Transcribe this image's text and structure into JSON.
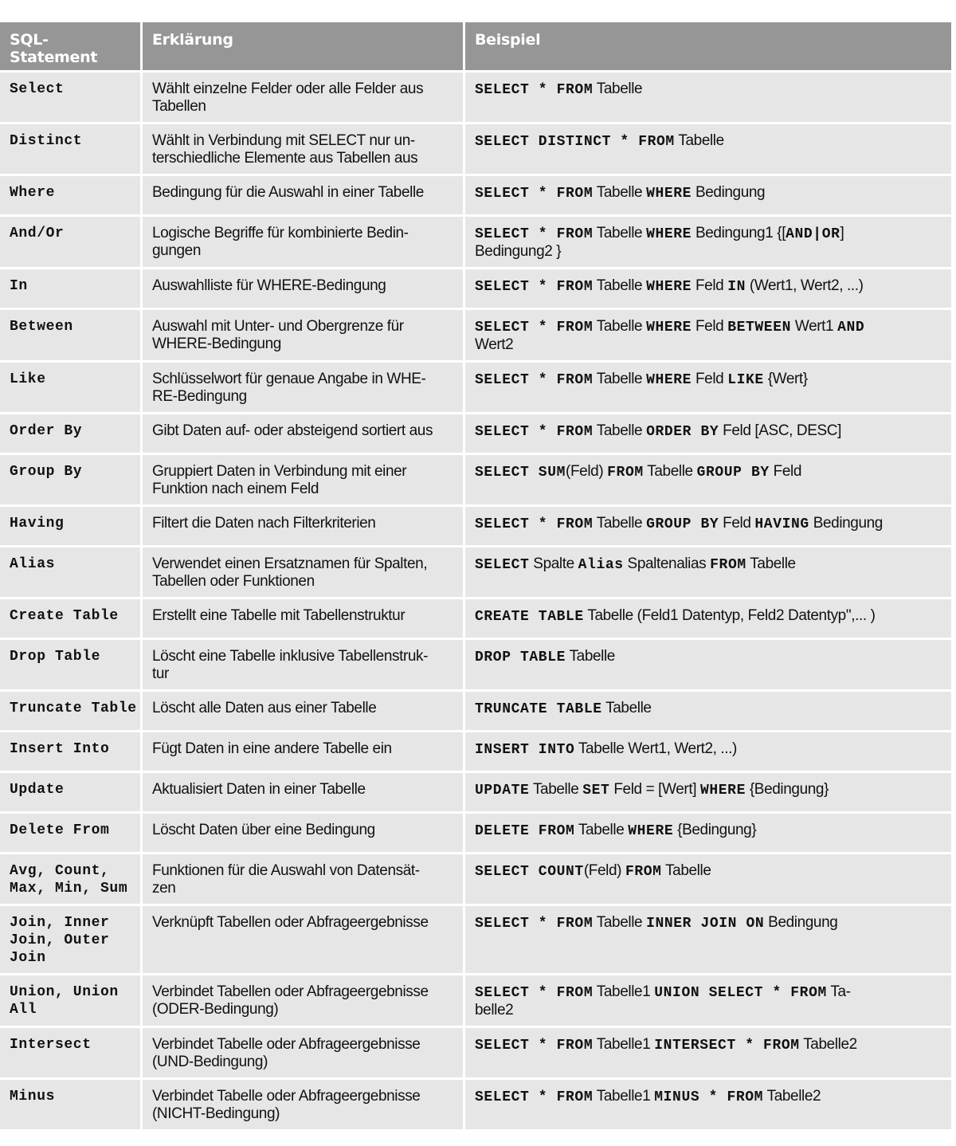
{
  "header": {
    "col1": "SQL-Statement",
    "col2": "Erklärung",
    "col3": "Beispiel"
  },
  "colors": {
    "header_bg": "#969696",
    "cell_bg": "#e6e6e6",
    "border": "#ffffff"
  },
  "rows": [
    {
      "statement": "Select",
      "explanation": "Wählt einzelne Felder oder alle Felder aus\nTabellen",
      "example": [
        {
          "c": "SELECT * FROM"
        },
        {
          "t": " Tabelle"
        }
      ]
    },
    {
      "statement": "Distinct",
      "explanation": "Wählt in Verbindung mit SELECT nur un-\nterschiedliche Elemente aus Tabellen aus",
      "example": [
        {
          "c": "SELECT DISTINCT * FROM"
        },
        {
          "t": " Tabelle"
        }
      ]
    },
    {
      "statement": "Where",
      "explanation": "Bedingung für die Auswahl in einer Tabelle",
      "example": [
        {
          "c": "SELECT * FROM"
        },
        {
          "t": " Tabelle "
        },
        {
          "c": "WHERE"
        },
        {
          "t": " Bedingung"
        }
      ]
    },
    {
      "statement": "And/Or",
      "explanation": "Logische Begriffe für kombinierte Bedin-\ngungen",
      "example": [
        {
          "c": "SELECT * FROM"
        },
        {
          "t": " Tabelle "
        },
        {
          "c": "WHERE"
        },
        {
          "t": " Bedingung1 {["
        },
        {
          "c": "AND|OR"
        },
        {
          "t": "]\nBedingung2 }"
        }
      ]
    },
    {
      "statement": "In",
      "explanation": "Auswahlliste für WHERE-Bedingung",
      "example": [
        {
          "c": "SELECT * FROM"
        },
        {
          "t": " Tabelle "
        },
        {
          "c": "WHERE"
        },
        {
          "t": " Feld "
        },
        {
          "c": "IN"
        },
        {
          "t": " (Wert1, Wert2, ...)"
        }
      ]
    },
    {
      "statement": "Between",
      "explanation": "Auswahl mit Unter- und Obergrenze für\nWHERE-Bedingung",
      "example": [
        {
          "c": "SELECT * FROM"
        },
        {
          "t": " Tabelle "
        },
        {
          "c": "WHERE"
        },
        {
          "t": " Feld "
        },
        {
          "c": "BETWEEN"
        },
        {
          "t": " Wert1 "
        },
        {
          "c": "AND"
        },
        {
          "t": "\nWert2"
        }
      ]
    },
    {
      "statement": "Like",
      "explanation": "Schlüsselwort für genaue Angabe in WHE-\nRE-Bedingung",
      "example": [
        {
          "c": "SELECT * FROM"
        },
        {
          "t": " Tabelle "
        },
        {
          "c": "WHERE"
        },
        {
          "t": " Feld "
        },
        {
          "c": "LIKE"
        },
        {
          "t": " {Wert}"
        }
      ]
    },
    {
      "statement": "Order By",
      "explanation": "Gibt Daten auf- oder absteigend sortiert aus",
      "example": [
        {
          "c": "SELECT * FROM"
        },
        {
          "t": " Tabelle "
        },
        {
          "c": "ORDER BY"
        },
        {
          "t": " Feld [ASC, DESC]"
        }
      ]
    },
    {
      "statement": "Group By",
      "explanation": "Gruppiert Daten in Verbindung mit einer\nFunktion nach einem Feld",
      "example": [
        {
          "c": "SELECT SUM"
        },
        {
          "t": "(Feld) "
        },
        {
          "c": "FROM"
        },
        {
          "t": " Tabelle "
        },
        {
          "c": "GROUP BY"
        },
        {
          "t": " Feld"
        }
      ]
    },
    {
      "statement": "Having",
      "explanation": "Filtert die Daten nach Filterkriterien",
      "example": [
        {
          "c": "SELECT * FROM"
        },
        {
          "t": " Tabelle "
        },
        {
          "c": "GROUP BY"
        },
        {
          "t": " Feld "
        },
        {
          "c": "HAVING"
        },
        {
          "t": " Bedingung"
        }
      ]
    },
    {
      "statement": "Alias",
      "explanation": "Verwendet einen Ersatznamen für Spalten,\nTabellen oder Funktionen",
      "example": [
        {
          "c": "SELECT"
        },
        {
          "t": " Spalte "
        },
        {
          "c": "Alias"
        },
        {
          "t": " Spaltenalias "
        },
        {
          "c": "FROM"
        },
        {
          "t": " Tabelle"
        }
      ]
    },
    {
      "statement": "Create Table",
      "explanation": "Erstellt eine Tabelle mit Tabellenstruktur",
      "example": [
        {
          "c": "CREATE TABLE"
        },
        {
          "t": " Tabelle (Feld1 Datentyp, Feld2 Datentyp\",... )"
        }
      ]
    },
    {
      "statement": "Drop Table",
      "explanation": "Löscht eine Tabelle inklusive Tabellenstruk-\ntur",
      "example": [
        {
          "c": "DROP TABLE"
        },
        {
          "t": " Tabelle"
        }
      ]
    },
    {
      "statement": "Truncate Table",
      "explanation": "Löscht alle Daten aus einer Tabelle",
      "example": [
        {
          "c": "TRUNCATE TABLE"
        },
        {
          "t": " Tabelle"
        }
      ]
    },
    {
      "statement": "Insert Into",
      "explanation": "Fügt Daten in eine andere Tabelle ein",
      "example": [
        {
          "c": "INSERT INTO"
        },
        {
          "t": " Tabelle Wert1, Wert2, ...)"
        }
      ]
    },
    {
      "statement": "Update",
      "explanation": "Aktualisiert Daten in einer Tabelle",
      "example": [
        {
          "c": "UPDATE"
        },
        {
          "t": " Tabelle "
        },
        {
          "c": "SET"
        },
        {
          "t": " Feld = [Wert] "
        },
        {
          "c": "WHERE"
        },
        {
          "t": " {Bedingung}"
        }
      ]
    },
    {
      "statement": "Delete From",
      "explanation": "Löscht Daten über eine Bedingung",
      "example": [
        {
          "c": "DELETE FROM"
        },
        {
          "t": " Tabelle "
        },
        {
          "c": "WHERE"
        },
        {
          "t": " {Bedingung}"
        }
      ]
    },
    {
      "statement": "Avg, Count,\nMax, Min, Sum",
      "explanation": "Funktionen für die Auswahl von Datensät-\nzen",
      "example": [
        {
          "c": "SELECT COUNT"
        },
        {
          "t": "(Feld) "
        },
        {
          "c": "FROM"
        },
        {
          "t": " Tabelle"
        }
      ]
    },
    {
      "statement": "Join, Inner\nJoin, Outer\nJoin",
      "explanation": "Verknüpft Tabellen oder Abfrageergebnisse",
      "example": [
        {
          "c": "SELECT * FROM"
        },
        {
          "t": " Tabelle "
        },
        {
          "c": "INNER JOIN ON"
        },
        {
          "t": " Bedingung"
        }
      ]
    },
    {
      "statement": "Union, Union\nAll",
      "explanation": "Verbindet Tabellen oder Abfrageergebnisse\n(ODER-Bedingung)",
      "example": [
        {
          "c": "SELECT * FROM"
        },
        {
          "t": " Tabelle1 "
        },
        {
          "c": "UNION SELECT * FROM"
        },
        {
          "t": " Ta-\nbelle2"
        }
      ]
    },
    {
      "statement": "Intersect",
      "explanation": "Verbindet Tabelle oder Abfrageergebnisse\n(UND-Bedingung)",
      "example": [
        {
          "c": "SELECT * FROM"
        },
        {
          "t": " Tabelle1 "
        },
        {
          "c": "INTERSECT * FROM"
        },
        {
          "t": " Tabelle2"
        }
      ]
    },
    {
      "statement": "Minus",
      "explanation": "Verbindet Tabelle oder Abfrageergebnisse\n(NICHT-Bedingung)",
      "example": [
        {
          "c": "SELECT * FROM"
        },
        {
          "t": " Tabelle1 "
        },
        {
          "c": "MINUS * FROM"
        },
        {
          "t": " Tabelle2"
        }
      ]
    }
  ]
}
